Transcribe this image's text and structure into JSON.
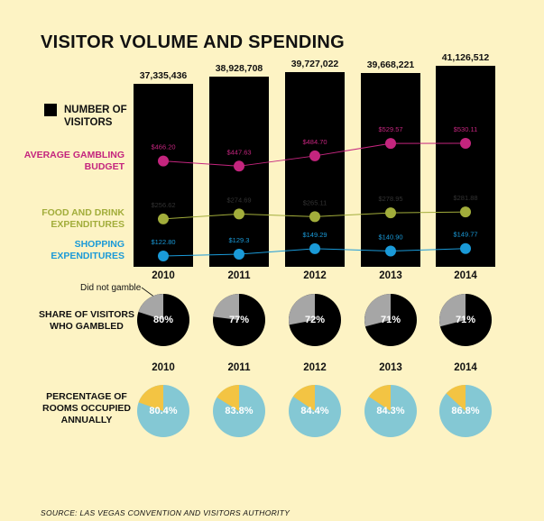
{
  "title": "VISITOR VOLUME AND SPENDING",
  "legend_label": "NUMBER OF VISITORS",
  "source": "SOURCE: LAS VEGAS CONVENTION AND VISITORS AUTHORITY",
  "did_not_gamble_label": "Did not gamble",
  "share_label": "SHARE OF VISITORS WHO GAMBLED",
  "occupancy_label": "PERCENTAGE OF ROOMS OCCUPIED ANNUALLY",
  "colors": {
    "background": "#fdf3c4",
    "bars": "#000000",
    "gambling": "#c4257e",
    "food": "#a2ad3b",
    "shopping": "#1a9ad8",
    "gambled": "#000000",
    "not_gambled": "#a6a6a6",
    "occupied": "#84c8d4",
    "unoccupied": "#f3c443"
  },
  "chart_data": [
    {
      "type": "bar",
      "title": "VISITOR VOLUME AND SPENDING",
      "categories": [
        "2010",
        "2011",
        "2012",
        "2013",
        "2014"
      ],
      "series": [
        {
          "name": "NUMBER OF VISITORS",
          "values": [
            37335436,
            38928708,
            39727022,
            39668221,
            41126512
          ],
          "labels": [
            "37,335,436",
            "38,928,708",
            "39,727,022",
            "39,668,221",
            "41,126,512"
          ]
        }
      ]
    },
    {
      "type": "line",
      "categories": [
        "2010",
        "2011",
        "2012",
        "2013",
        "2014"
      ],
      "series": [
        {
          "name": "AVERAGE GAMBLING BUDGET",
          "values": [
            466.2,
            447.63,
            484.7,
            529.57,
            530.11
          ],
          "labels": [
            "$466.20",
            "$447.63",
            "$484.70",
            "$529.57",
            "$530.11"
          ]
        },
        {
          "name": "FOOD AND DRINK EXPENDITURES",
          "values": [
            256.62,
            274.69,
            265.11,
            278.95,
            281.88
          ],
          "labels": [
            "$256.62",
            "$274.69",
            "$265.11",
            "$278.95",
            "$281.88"
          ]
        },
        {
          "name": "SHOPPING EXPENDITURES",
          "values": [
            122.8,
            129.3,
            149.29,
            140.9,
            149.77
          ],
          "labels": [
            "$122.80",
            "$129.3",
            "$149.29",
            "$140.90",
            "$149.77"
          ]
        }
      ]
    },
    {
      "type": "pie",
      "title": "SHARE OF VISITORS WHO GAMBLED",
      "categories": [
        "2010",
        "2011",
        "2012",
        "2013",
        "2014"
      ],
      "values": [
        80,
        77,
        72,
        71,
        71
      ],
      "labels": [
        "80%",
        "77%",
        "72%",
        "71%",
        "71%"
      ]
    },
    {
      "type": "pie",
      "title": "PERCENTAGE OF ROOMS OCCUPIED ANNUALLY",
      "categories": [
        "2010",
        "2011",
        "2012",
        "2013",
        "2014"
      ],
      "values": [
        80.4,
        83.8,
        84.4,
        84.3,
        86.8
      ],
      "labels": [
        "80.4%",
        "83.8%",
        "84.4%",
        "84.3%",
        "86.8%"
      ]
    }
  ]
}
